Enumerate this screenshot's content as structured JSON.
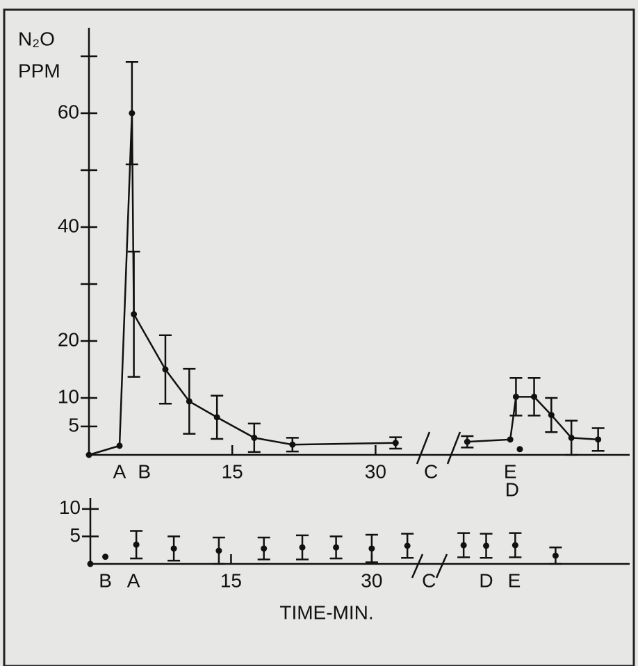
{
  "chart_data": [
    {
      "type": "line",
      "ylabel": [
        "N₂O",
        "PPM"
      ],
      "xlim": [
        0,
        56.6
      ],
      "ylim": [
        0,
        75
      ],
      "xticks": [
        15,
        30
      ],
      "yticks": [
        5,
        10,
        20,
        40,
        60
      ],
      "minor_yticks": [
        30,
        50,
        70
      ],
      "series": [
        {
          "color": "#111111",
          "x": [
            0,
            3.2,
            4.5,
            4.7,
            8.0,
            10.5,
            13.4,
            17.3,
            21.3,
            32.1,
            36,
            39.6,
            44.1,
            44.7,
            46.6,
            48.4,
            50.5,
            53.3
          ],
          "values": [
            0,
            1.6,
            60,
            24.7,
            15,
            9.4,
            6.6,
            3.0,
            1.8,
            2.1,
            null,
            2.3,
            2.7,
            10.2,
            10.2,
            7.0,
            3.0,
            2.7
          ],
          "errors": [
            null,
            null,
            9,
            11,
            6,
            5.7,
            3.8,
            2.5,
            1.2,
            1,
            null,
            1,
            null,
            3.3,
            3.3,
            3,
            3,
            2
          ]
        },
        {
          "color": "#111111",
          "x": [
            45.1
          ],
          "values": [
            1
          ],
          "errors": [
            null
          ]
        }
      ],
      "annotations": [
        {
          "text": "A",
          "x": 3.2
        },
        {
          "text": "B",
          "x": 5.8
        },
        {
          "text": "C",
          "x": 35.8
        },
        {
          "text": "E",
          "x": 44.1
        }
      ],
      "annotations_lower": [
        {
          "text": "D",
          "x": 44.3
        }
      ]
    },
    {
      "type": "scatter",
      "xlabel": "TIME-MIN.",
      "xlim": [
        0,
        57.5
      ],
      "ylim": [
        0,
        12
      ],
      "xticks": [
        15,
        30
      ],
      "yticks": [
        5,
        10
      ],
      "series": [
        {
          "color": "#111111",
          "x": [
            0,
            1.6,
            4.9,
            8.9,
            13.7,
            18.5,
            22.6,
            26.2,
            30.0,
            33.8,
            39.8,
            42.2,
            45.3,
            49.6
          ],
          "values": [
            0,
            1.3,
            3.5,
            2.8,
            2.4,
            2.8,
            3.0,
            3.0,
            2.8,
            3.3,
            3.4,
            3.3,
            3.4,
            1.5
          ],
          "errors": [
            null,
            null,
            2.5,
            2.2,
            2.4,
            2,
            2.2,
            2,
            2.5,
            2.2,
            2.2,
            2.2,
            2.2,
            1.5
          ]
        }
      ],
      "annotations": [
        {
          "text": "B",
          "x": 1.6
        },
        {
          "text": "A",
          "x": 4.6
        },
        {
          "text": "C",
          "x": 36.1
        },
        {
          "text": "D",
          "x": 42.2
        },
        {
          "text": "E",
          "x": 45.2
        }
      ]
    }
  ]
}
